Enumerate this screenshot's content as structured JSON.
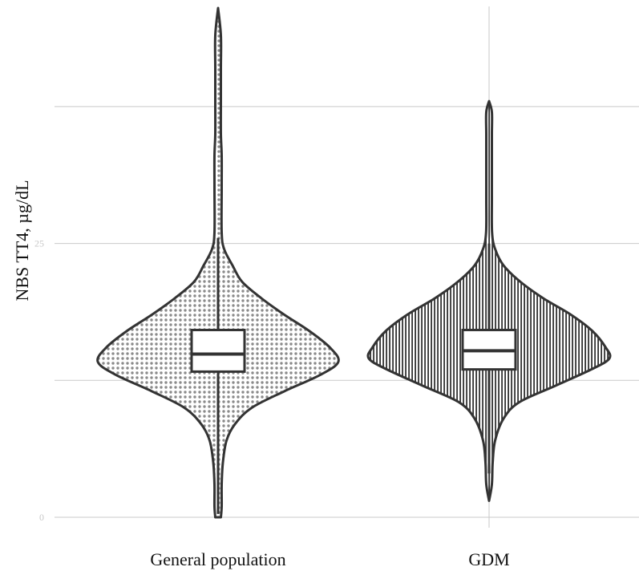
{
  "chart_data": {
    "type": "violin",
    "ylabel": "NBS TT4, µg/dL",
    "xlabel": "",
    "categories": [
      "General population",
      "GDM"
    ],
    "y_ticks": [
      0,
      25
    ],
    "ylim": [
      0,
      46.5
    ],
    "grid": {
      "horizontal_major": true,
      "horizontal_minor": true,
      "vertical_at": [
        "GDM"
      ]
    },
    "series": [
      {
        "category": "General population",
        "fill_pattern": "dots",
        "min": 0.0,
        "max": 46.5,
        "q1": 13.3,
        "median": 14.9,
        "q3": 17.1,
        "whisker_low": 0.3,
        "whisker_high": 25.5,
        "density": [
          [
            0.0,
            0.02
          ],
          [
            1.0,
            0.03
          ],
          [
            3.0,
            0.03
          ],
          [
            5.0,
            0.04
          ],
          [
            7.0,
            0.07
          ],
          [
            8.5,
            0.14
          ],
          [
            10.0,
            0.28
          ],
          [
            11.5,
            0.55
          ],
          [
            13.0,
            0.85
          ],
          [
            14.2,
            1.0
          ],
          [
            15.5,
            0.93
          ],
          [
            17.0,
            0.76
          ],
          [
            18.5,
            0.55
          ],
          [
            20.0,
            0.36
          ],
          [
            21.5,
            0.2
          ],
          [
            23.0,
            0.12
          ],
          [
            24.5,
            0.05
          ],
          [
            26.0,
            0.03
          ],
          [
            30.0,
            0.03
          ],
          [
            33.0,
            0.03
          ],
          [
            35.0,
            0.02
          ],
          [
            38.0,
            0.02
          ],
          [
            41.0,
            0.02
          ],
          [
            44.0,
            0.015
          ],
          [
            46.5,
            0.0
          ]
        ]
      },
      {
        "category": "GDM",
        "fill_pattern": "vertical-lines",
        "min": 1.5,
        "max": 38.0,
        "q1": 13.5,
        "median": 15.2,
        "q3": 17.1,
        "whisker_low": 4.0,
        "whisker_high": 25.0,
        "density": [
          [
            1.5,
            0.0
          ],
          [
            3.0,
            0.02
          ],
          [
            5.0,
            0.03
          ],
          [
            7.0,
            0.05
          ],
          [
            9.0,
            0.12
          ],
          [
            10.5,
            0.25
          ],
          [
            12.0,
            0.55
          ],
          [
            13.5,
            0.85
          ],
          [
            14.5,
            1.0
          ],
          [
            15.5,
            0.97
          ],
          [
            17.0,
            0.86
          ],
          [
            18.5,
            0.68
          ],
          [
            20.0,
            0.45
          ],
          [
            21.5,
            0.26
          ],
          [
            23.0,
            0.12
          ],
          [
            24.5,
            0.05
          ],
          [
            26.0,
            0.025
          ],
          [
            29.0,
            0.02
          ],
          [
            31.0,
            0.02
          ],
          [
            33.0,
            0.02
          ],
          [
            35.0,
            0.02
          ],
          [
            37.0,
            0.015
          ],
          [
            38.0,
            0.0
          ]
        ]
      }
    ]
  }
}
